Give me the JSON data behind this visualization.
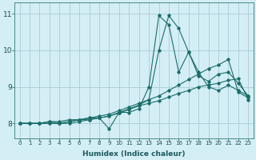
{
  "xlabel": "Humidex (Indice chaleur)",
  "bg_color": "#d4eef5",
  "grid_color": "#aaccd8",
  "line_color": "#1a6e6a",
  "xlim": [
    -0.5,
    23.5
  ],
  "ylim": [
    7.6,
    11.3
  ],
  "xticks": [
    0,
    1,
    2,
    3,
    4,
    5,
    6,
    7,
    8,
    9,
    10,
    11,
    12,
    13,
    14,
    15,
    16,
    17,
    18,
    19,
    20,
    21,
    22,
    23
  ],
  "yticks": [
    8,
    9,
    10,
    11
  ],
  "series": [
    {
      "x": [
        0,
        1,
        2,
        3,
        4,
        5,
        6,
        7,
        8,
        9,
        10,
        11,
        12,
        13,
        14,
        15,
        16,
        17,
        18,
        19,
        20,
        21,
        22,
        23
      ],
      "y": [
        8.0,
        8.0,
        8.0,
        8.05,
        8.0,
        8.05,
        8.1,
        8.1,
        8.15,
        7.85,
        8.3,
        8.3,
        8.4,
        9.0,
        10.95,
        10.7,
        9.4,
        9.95,
        9.4,
        9.0,
        8.9,
        9.05,
        8.9,
        8.75
      ]
    },
    {
      "x": [
        0,
        1,
        2,
        3,
        4,
        5,
        6,
        7,
        8,
        9,
        10,
        11,
        12,
        13,
        14,
        15,
        16,
        17,
        18,
        19,
        20,
        21,
        22,
        23
      ],
      "y": [
        8.0,
        8.0,
        8.0,
        8.05,
        8.05,
        8.1,
        8.1,
        8.15,
        8.15,
        8.2,
        8.3,
        8.4,
        8.5,
        8.65,
        10.0,
        10.95,
        10.6,
        9.95,
        9.3,
        9.15,
        9.35,
        9.4,
        9.1,
        8.75
      ]
    },
    {
      "x": [
        0,
        1,
        2,
        3,
        4,
        5,
        6,
        7,
        8,
        9,
        10,
        11,
        12,
        13,
        14,
        15,
        16,
        17,
        18,
        19,
        20,
        21,
        22,
        23
      ],
      "y": [
        8.0,
        8.0,
        8.0,
        8.0,
        8.0,
        8.05,
        8.1,
        8.15,
        8.2,
        8.25,
        8.35,
        8.45,
        8.55,
        8.65,
        8.75,
        8.9,
        9.05,
        9.2,
        9.35,
        9.5,
        9.6,
        9.75,
        8.85,
        8.7
      ]
    },
    {
      "x": [
        0,
        1,
        2,
        3,
        4,
        5,
        6,
        7,
        8,
        9,
        10,
        11,
        12,
        13,
        14,
        15,
        16,
        17,
        18,
        19,
        20,
        21,
        22,
        23
      ],
      "y": [
        8.0,
        8.0,
        8.0,
        8.0,
        8.0,
        8.0,
        8.05,
        8.1,
        8.15,
        8.2,
        8.28,
        8.38,
        8.48,
        8.55,
        8.62,
        8.72,
        8.82,
        8.9,
        9.0,
        9.05,
        9.1,
        9.18,
        9.22,
        8.65
      ]
    }
  ]
}
